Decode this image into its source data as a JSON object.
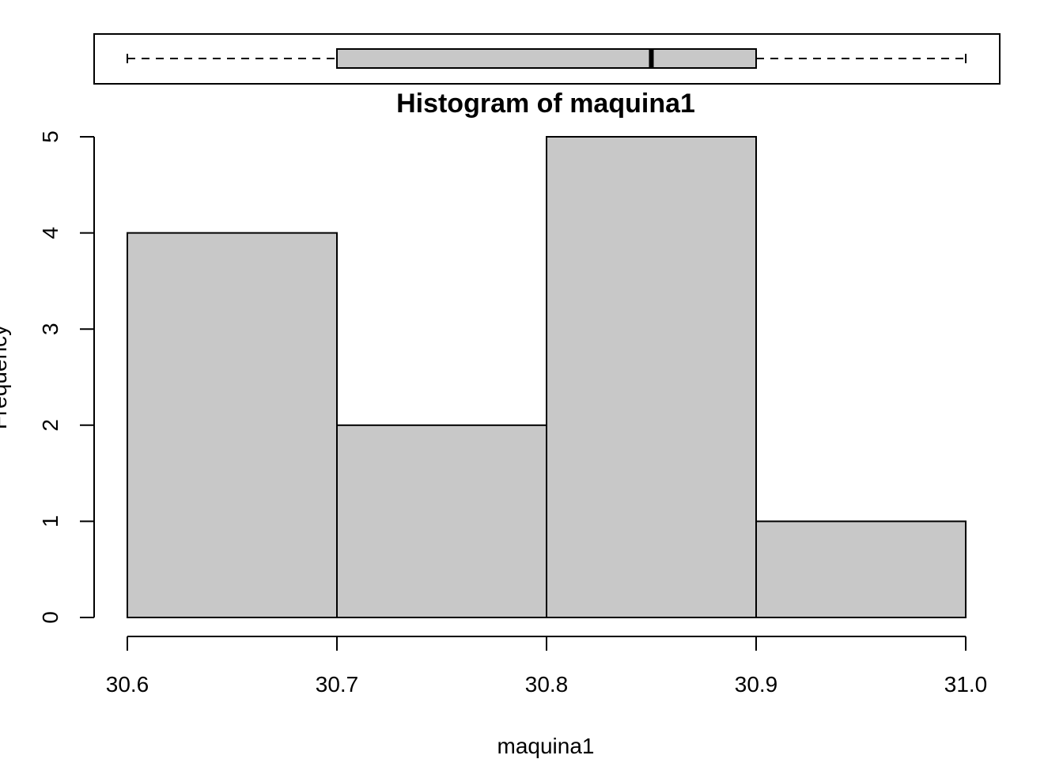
{
  "chart_data": {
    "type": "bar",
    "title": "Histogram of maquina1",
    "xlabel": "maquina1",
    "ylabel": "Frequency",
    "bins": [
      {
        "start": 30.6,
        "end": 30.7,
        "count": 4
      },
      {
        "start": 30.7,
        "end": 30.8,
        "count": 2
      },
      {
        "start": 30.8,
        "end": 30.9,
        "count": 5
      },
      {
        "start": 30.9,
        "end": 31.0,
        "count": 1
      }
    ],
    "xlim": [
      30.6,
      31.0
    ],
    "ylim": [
      0,
      5
    ],
    "x_ticks": [
      "30.6",
      "30.7",
      "30.8",
      "30.9",
      "31.0"
    ],
    "y_ticks": [
      "0",
      "1",
      "2",
      "3",
      "4",
      "5"
    ],
    "bar_color": "#c8c8c8",
    "grid": false,
    "boxplot": {
      "min": 30.6,
      "q1": 30.7,
      "median": 30.85,
      "q3": 30.9,
      "max": 31.0,
      "box_color": "#c8c8c8"
    }
  }
}
